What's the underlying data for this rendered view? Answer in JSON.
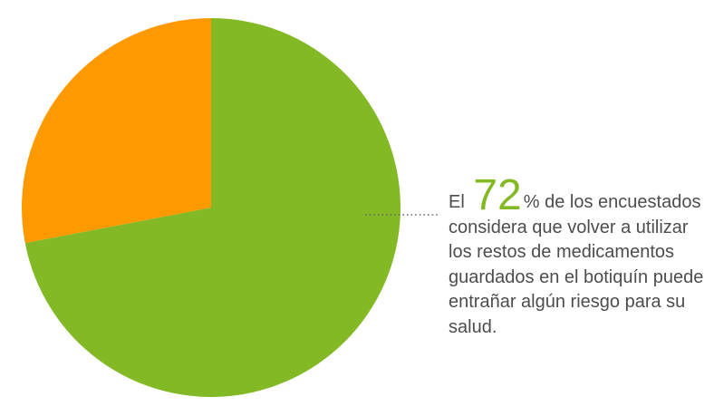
{
  "chart_data": {
    "type": "pie",
    "slices": [
      {
        "value": 72,
        "color": "#84b926"
      },
      {
        "value": 28,
        "color": "#ff9900"
      }
    ],
    "start_angle_deg": 0,
    "direction": "clockwise",
    "legend": "none"
  },
  "annotation": {
    "prefix": "El",
    "highlight_value": "72",
    "suffix_symbol": "%",
    "text": "de los encuestados considera que volver a utilizar los restos de medicamentos guardados en el botiquín puede entrañar algún riesgo para su salud."
  }
}
